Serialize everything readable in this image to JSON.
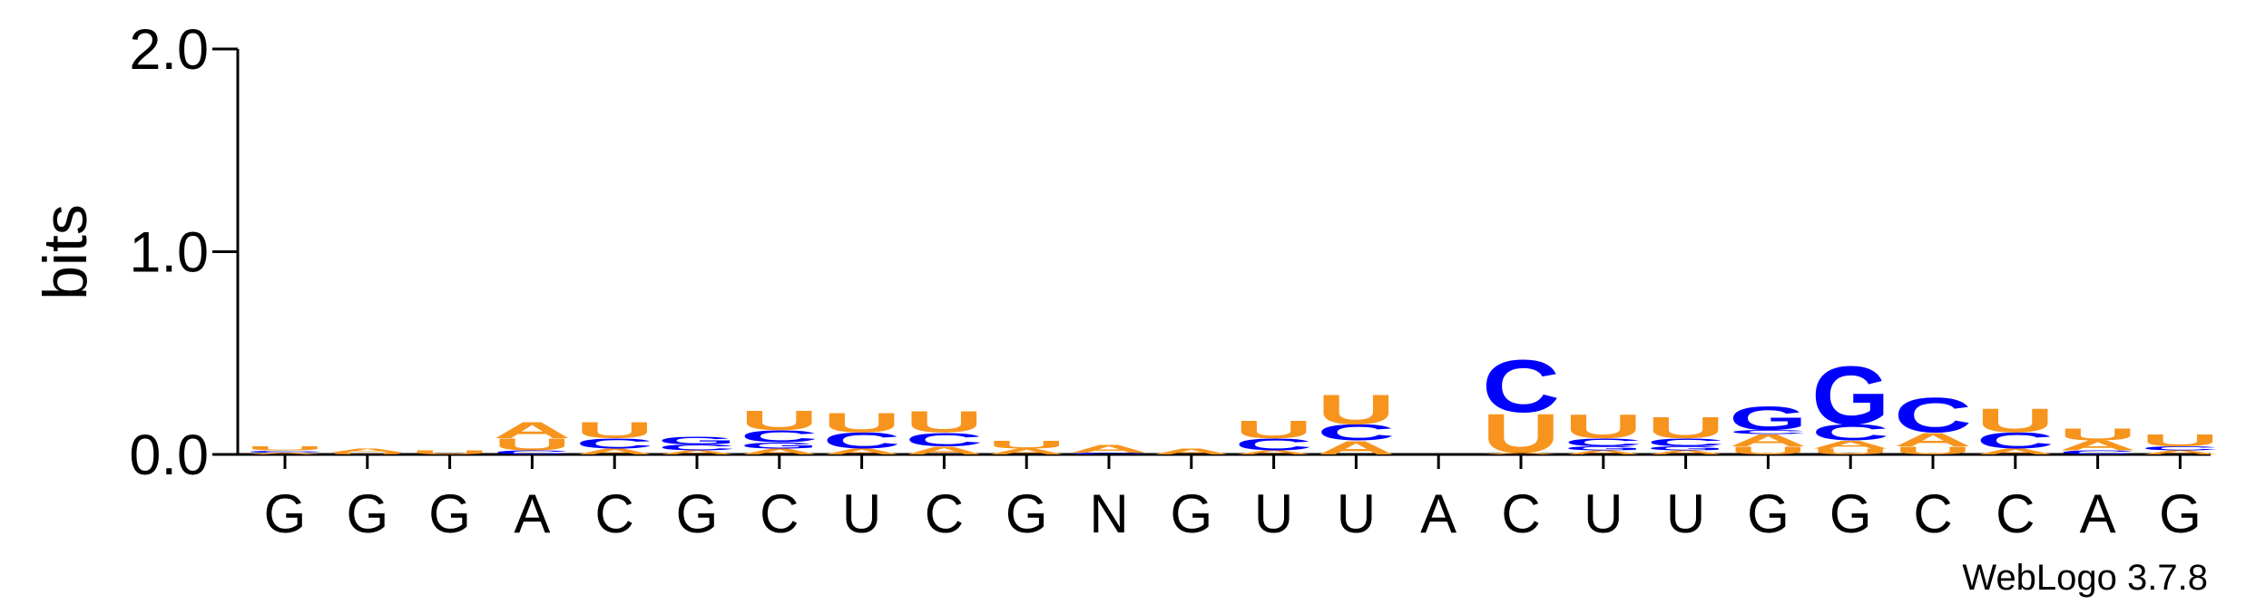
{
  "chart_data": {
    "type": "logo",
    "y_label": "bits",
    "footer": "WebLogo 3.7.8",
    "ylim": [
      0,
      2
    ],
    "yticks": [
      {
        "value": 0,
        "label": "0.0"
      },
      {
        "value": 1,
        "label": "1.0"
      },
      {
        "value": 2,
        "label": "2.0"
      }
    ],
    "categories": [
      "G",
      "G",
      "G",
      "A",
      "C",
      "G",
      "C",
      "U",
      "C",
      "G",
      "N",
      "G",
      "U",
      "U",
      "A",
      "C",
      "U",
      "U",
      "G",
      "G",
      "C",
      "C",
      "A",
      "G"
    ],
    "colors": {
      "A": "#f7941d",
      "U": "#f7941d",
      "C": "#0000ff",
      "G": "#0000ff"
    },
    "stacks": [
      [
        {
          "letter": "A",
          "height": 0.01
        },
        {
          "letter": "C",
          "height": 0.01
        },
        {
          "letter": "U",
          "height": 0.02
        }
      ],
      [
        {
          "letter": "U",
          "height": 0.01
        },
        {
          "letter": "A",
          "height": 0.02
        }
      ],
      [
        {
          "letter": "U",
          "height": 0.02
        }
      ],
      [
        {
          "letter": "C",
          "height": 0.02
        },
        {
          "letter": "U",
          "height": 0.06
        },
        {
          "letter": "A",
          "height": 0.08
        }
      ],
      [
        {
          "letter": "A",
          "height": 0.03
        },
        {
          "letter": "C",
          "height": 0.05
        },
        {
          "letter": "U",
          "height": 0.08
        }
      ],
      [
        {
          "letter": "A",
          "height": 0.02
        },
        {
          "letter": "C",
          "height": 0.03
        },
        {
          "letter": "G",
          "height": 0.04
        }
      ],
      [
        {
          "letter": "A",
          "height": 0.03
        },
        {
          "letter": "G",
          "height": 0.03
        },
        {
          "letter": "C",
          "height": 0.06
        },
        {
          "letter": "U",
          "height": 0.1
        }
      ],
      [
        {
          "letter": "A",
          "height": 0.03
        },
        {
          "letter": "C",
          "height": 0.08
        },
        {
          "letter": "U",
          "height": 0.1
        }
      ],
      [
        {
          "letter": "A",
          "height": 0.04
        },
        {
          "letter": "C",
          "height": 0.07
        },
        {
          "letter": "U",
          "height": 0.11
        }
      ],
      [
        {
          "letter": "A",
          "height": 0.03
        },
        {
          "letter": "U",
          "height": 0.04
        }
      ],
      [
        {
          "letter": "C",
          "height": 0.01
        },
        {
          "letter": "A",
          "height": 0.04
        }
      ],
      [
        {
          "letter": "A",
          "height": 0.03
        }
      ],
      [
        {
          "letter": "A",
          "height": 0.02
        },
        {
          "letter": "C",
          "height": 0.06
        },
        {
          "letter": "U",
          "height": 0.09
        }
      ],
      [
        {
          "letter": "A",
          "height": 0.07
        },
        {
          "letter": "C",
          "height": 0.08
        },
        {
          "letter": "U",
          "height": 0.15
        }
      ],
      [],
      [
        {
          "letter": "A",
          "height": 0.01
        },
        {
          "letter": "U",
          "height": 0.2
        },
        {
          "letter": "C",
          "height": 0.27
        }
      ],
      [
        {
          "letter": "A",
          "height": 0.02
        },
        {
          "letter": "G",
          "height": 0.02
        },
        {
          "letter": "C",
          "height": 0.04
        },
        {
          "letter": "U",
          "height": 0.12
        }
      ],
      [
        {
          "letter": "A",
          "height": 0.02
        },
        {
          "letter": "G",
          "height": 0.02
        },
        {
          "letter": "C",
          "height": 0.04
        },
        {
          "letter": "U",
          "height": 0.11
        }
      ],
      [
        {
          "letter": "U",
          "height": 0.04
        },
        {
          "letter": "A",
          "height": 0.06
        },
        {
          "letter": "C",
          "height": 0.02
        },
        {
          "letter": "G",
          "height": 0.12
        }
      ],
      [
        {
          "letter": "U",
          "height": 0.03
        },
        {
          "letter": "A",
          "height": 0.04
        },
        {
          "letter": "C",
          "height": 0.08
        },
        {
          "letter": "G",
          "height": 0.3
        }
      ],
      [
        {
          "letter": "U",
          "height": 0.04
        },
        {
          "letter": "A",
          "height": 0.07
        },
        {
          "letter": "C",
          "height": 0.18
        }
      ],
      [
        {
          "letter": "A",
          "height": 0.03
        },
        {
          "letter": "C",
          "height": 0.08
        },
        {
          "letter": "U",
          "height": 0.12
        }
      ],
      [
        {
          "letter": "C",
          "height": 0.02
        },
        {
          "letter": "A",
          "height": 0.05
        },
        {
          "letter": "U",
          "height": 0.06
        }
      ],
      [
        {
          "letter": "A",
          "height": 0.02
        },
        {
          "letter": "C",
          "height": 0.02
        },
        {
          "letter": "U",
          "height": 0.06
        }
      ]
    ]
  }
}
